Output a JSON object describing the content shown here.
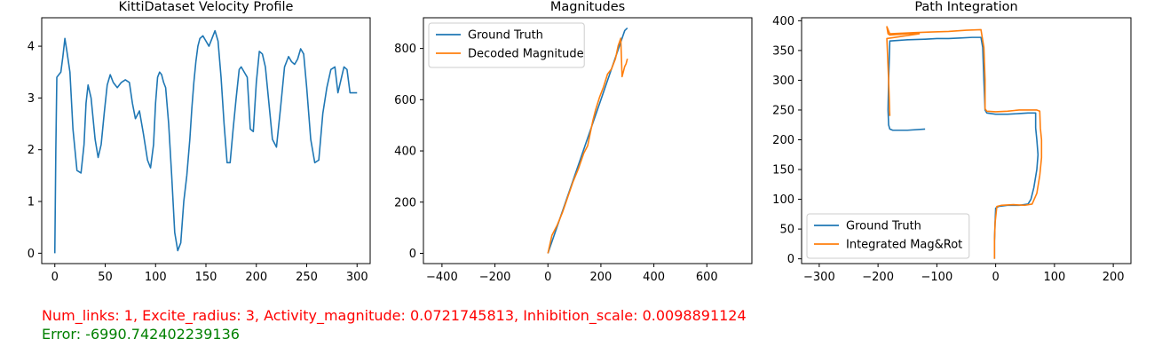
{
  "colors": {
    "ground_truth": "#1f77b4",
    "decoded": "#ff7f0e",
    "params_text": "#ff0000",
    "error_text": "#008000"
  },
  "footer": {
    "params": "Num_links: 1, Excite_radius: 3, Activity_magnitude: 0.0721745813, Inhibition_scale: 0.0098891124",
    "error": "Error: -6990.742402239136"
  },
  "chart_data": [
    {
      "type": "line",
      "title": "KittiDataset Velocity Profile",
      "xlim": [
        -13,
        313
      ],
      "ylim": [
        -0.2,
        4.55
      ],
      "xticks": [
        0,
        50,
        100,
        150,
        200,
        250,
        300
      ],
      "yticks": [
        0,
        1,
        2,
        3,
        4
      ],
      "series": [
        {
          "color": "#1f77b4",
          "x": [
            0,
            1,
            2,
            4,
            6,
            8,
            10,
            12,
            15,
            18,
            22,
            26,
            29,
            31,
            33,
            36,
            40,
            43,
            46,
            49,
            52,
            55,
            58,
            62,
            66,
            70,
            74,
            77,
            80,
            84,
            88,
            92,
            95,
            98,
            100,
            102,
            104,
            106,
            108,
            110,
            113,
            116,
            119,
            122,
            125,
            128,
            131,
            134,
            136,
            138,
            140,
            142,
            144,
            147,
            150,
            153,
            156,
            159,
            162,
            165,
            168,
            171,
            174,
            177,
            180,
            183,
            185,
            188,
            191,
            194,
            197,
            200,
            203,
            206,
            209,
            212,
            216,
            220,
            224,
            228,
            232,
            235,
            238,
            241,
            244,
            247,
            250,
            254,
            258,
            262,
            266,
            270,
            274,
            278,
            281,
            284,
            287,
            290,
            293,
            296,
            300
          ],
          "y": [
            0,
            2.0,
            3.4,
            3.45,
            3.5,
            3.8,
            4.15,
            3.9,
            3.5,
            2.4,
            1.6,
            1.55,
            2.1,
            2.9,
            3.25,
            3.0,
            2.2,
            1.85,
            2.1,
            2.7,
            3.25,
            3.45,
            3.3,
            3.2,
            3.3,
            3.35,
            3.3,
            2.9,
            2.6,
            2.75,
            2.3,
            1.8,
            1.65,
            2.1,
            2.9,
            3.4,
            3.5,
            3.45,
            3.3,
            3.2,
            2.5,
            1.5,
            0.4,
            0.05,
            0.2,
            1.0,
            1.5,
            2.2,
            2.8,
            3.3,
            3.7,
            4.0,
            4.15,
            4.2,
            4.1,
            4.0,
            4.15,
            4.3,
            4.1,
            3.4,
            2.5,
            1.75,
            1.75,
            2.4,
            3.0,
            3.55,
            3.6,
            3.5,
            3.4,
            2.4,
            2.35,
            3.3,
            3.9,
            3.85,
            3.6,
            3.0,
            2.2,
            2.05,
            2.8,
            3.6,
            3.8,
            3.7,
            3.65,
            3.75,
            3.95,
            3.85,
            3.2,
            2.2,
            1.75,
            1.8,
            2.7,
            3.2,
            3.55,
            3.6,
            3.1,
            3.35,
            3.6,
            3.55,
            3.1,
            3.1,
            3.1
          ]
        }
      ]
    },
    {
      "type": "line",
      "title": "Magnitudes",
      "xlim": [
        -470,
        770
      ],
      "ylim": [
        -40,
        920
      ],
      "xticks": [
        -400,
        -200,
        0,
        200,
        400,
        600
      ],
      "yticks": [
        0,
        200,
        400,
        600,
        800
      ],
      "legend_position": "upper-left",
      "series": [
        {
          "name": "Ground Truth",
          "color": "#1f77b4",
          "x": [
            0,
            10,
            20,
            30,
            40,
            50,
            60,
            70,
            80,
            90,
            100,
            110,
            120,
            130,
            140,
            150,
            160,
            170,
            180,
            190,
            200,
            210,
            220,
            230,
            240,
            250,
            260,
            270,
            280,
            290,
            300
          ],
          "y": [
            0,
            30,
            60,
            90,
            120,
            150,
            180,
            210,
            240,
            270,
            300,
            330,
            360,
            390,
            420,
            450,
            480,
            510,
            540,
            570,
            600,
            630,
            660,
            690,
            720,
            750,
            780,
            810,
            840,
            870,
            880
          ]
        },
        {
          "name": "Decoded Magnitude",
          "color": "#ff7f0e",
          "x": [
            0,
            15,
            35,
            55,
            75,
            95,
            115,
            135,
            150,
            160,
            170,
            180,
            195,
            210,
            225,
            240,
            255,
            265,
            275,
            280,
            285,
            290,
            295,
            300
          ],
          "y": [
            0,
            70,
            110,
            160,
            220,
            280,
            330,
            390,
            420,
            470,
            520,
            560,
            610,
            650,
            700,
            720,
            760,
            810,
            840,
            690,
            710,
            730,
            740,
            760
          ]
        }
      ]
    },
    {
      "type": "line",
      "title": "Path Integration",
      "xlim": [
        -330,
        230
      ],
      "ylim": [
        -8,
        405
      ],
      "xticks": [
        -300,
        -200,
        -100,
        0,
        100,
        200
      ],
      "yticks": [
        0,
        50,
        100,
        150,
        200,
        250,
        300,
        350,
        400
      ],
      "legend_position": "lower-left",
      "series": [
        {
          "name": "Ground Truth",
          "color": "#1f77b4",
          "x": [
            -2,
            -2,
            -1,
            0,
            5,
            20,
            40,
            55,
            60,
            65,
            70,
            72,
            70,
            68,
            68,
            65,
            55,
            40,
            20,
            0,
            -15,
            -18,
            -20,
            -22,
            -25,
            -40,
            -60,
            -80,
            -100,
            -120,
            -150,
            -180,
            -182,
            -183,
            -182,
            -180,
            -175,
            -165,
            -150,
            -120
          ],
          "y": [
            0,
            30,
            60,
            85,
            88,
            90,
            90,
            92,
            100,
            120,
            150,
            175,
            200,
            220,
            245,
            245,
            245,
            244,
            243,
            243,
            245,
            250,
            300,
            355,
            372,
            372,
            371,
            370,
            370,
            369,
            368,
            366,
            300,
            250,
            225,
            218,
            216,
            216,
            216,
            218
          ]
        },
        {
          "name": "Integrated Mag&Rot",
          "color": "#ff7f0e",
          "x": [
            -2,
            -2,
            -1,
            2,
            10,
            30,
            50,
            62,
            70,
            75,
            78,
            78,
            76,
            75,
            70,
            60,
            40,
            20,
            0,
            -15,
            -18,
            -18,
            -20,
            -25,
            -50,
            -80,
            -110,
            -140,
            -160,
            -180,
            -185,
            -183,
            -180,
            -150,
            -130,
            -185,
            -182,
            -180
          ],
          "y": [
            0,
            30,
            60,
            88,
            90,
            91,
            90,
            92,
            110,
            140,
            170,
            200,
            220,
            248,
            250,
            250,
            250,
            248,
            247,
            248,
            252,
            300,
            355,
            385,
            384,
            382,
            381,
            380,
            379,
            378,
            390,
            378,
            376,
            378,
            378,
            370,
            300,
            240
          ]
        }
      ]
    }
  ]
}
